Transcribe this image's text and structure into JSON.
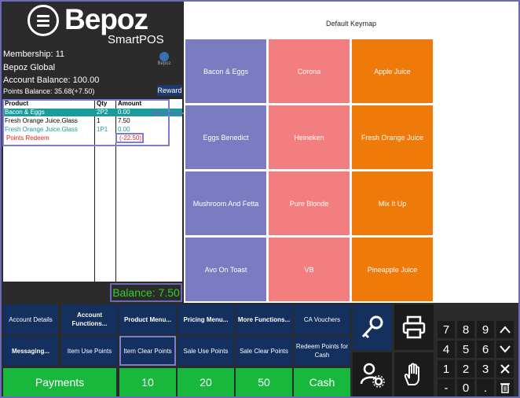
{
  "brand": {
    "name": "Bepoz",
    "product": "SmartPOS"
  },
  "account": {
    "membership": "Membership: 11",
    "venue": "Bepoz Global",
    "balance": "Account Balance: 100.00",
    "points": "Points Balance: 35.68(+7.50)",
    "reward_label": "Reward"
  },
  "order": {
    "headers": {
      "product": "Product",
      "qty": "Qty",
      "amount": "Amount"
    },
    "rows": [
      {
        "product": "Bacon & Eggs",
        "qty": "2P2",
        "amount": "0.00"
      },
      {
        "product": "Fresh Orange Juice.Glass",
        "qty": "1",
        "amount": "7.50"
      },
      {
        "product": "Fresh Orange Juice.Glass",
        "qty": "1P1",
        "amount": "0.00"
      },
      {
        "product": "Points Redeem",
        "qty": "",
        "amount": "(-22.50)"
      }
    ],
    "balance": "Balance: 7.50"
  },
  "keymap": {
    "title": "Default Keymap",
    "keys": [
      {
        "label": "Bacon & Eggs",
        "color": "#7b7bc2"
      },
      {
        "label": "Corona",
        "color": "#f27e80"
      },
      {
        "label": "Apple Juice",
        "color": "#ee7a0a"
      },
      {
        "label": "Eggs Benedict",
        "color": "#7b7bc2"
      },
      {
        "label": "Heineken",
        "color": "#f27e80"
      },
      {
        "label": "Fresh Orange Juice",
        "color": "#ee7a0a"
      },
      {
        "label": "Mushroom And Fetta",
        "color": "#7b7bc2"
      },
      {
        "label": "Pure Blonde",
        "color": "#f27e80"
      },
      {
        "label": "Mix It Up",
        "color": "#ee7a0a"
      },
      {
        "label": "Avo On Toast",
        "color": "#7b7bc2"
      },
      {
        "label": "VB",
        "color": "#f27e80"
      },
      {
        "label": "Pineapple Juice",
        "color": "#ee7a0a"
      }
    ]
  },
  "functions": {
    "account_details": "Account Details",
    "account_functions": "Account Functions...",
    "product_menu": "Product Menu...",
    "pricing_menu": "Pricing Menu...",
    "more_functions": "More Functions...",
    "ca_vouchers": "CA Vouchers",
    "messaging": "Messaging...",
    "item_use_points": "Item Use Points",
    "item_clear_points": "Item Clear Points",
    "sale_use_points": "Sale Use Points",
    "sale_clear_points": "Sale Clear Points",
    "redeem_points_cash": "Redeem Points for Cash"
  },
  "tender": {
    "payments": "Payments",
    "ten": "10",
    "twenty": "20",
    "fifty": "50",
    "cash": "Cash"
  },
  "numpad": [
    "7",
    "8",
    "9",
    "4",
    "5",
    "6",
    "1",
    "2",
    "3",
    "-",
    "0",
    "."
  ],
  "colors": {
    "panel": "#2b2b2b",
    "navy": "#14305e",
    "green": "#17b83c",
    "teal": "#1a9c9c",
    "balance_green": "#2fd02f",
    "highlight": "#7c7cd0"
  }
}
